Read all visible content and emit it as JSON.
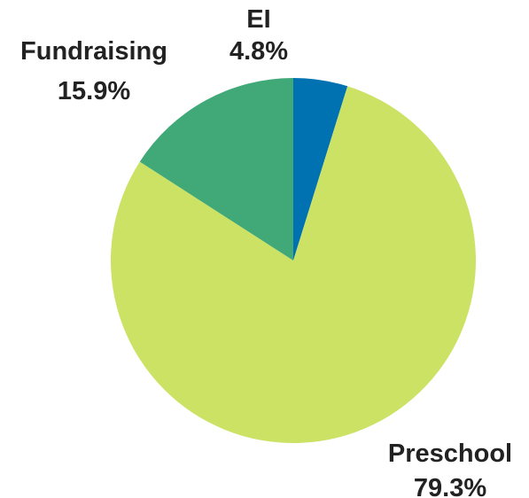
{
  "chart_data": {
    "type": "pie",
    "title": "",
    "slices": [
      {
        "name": "EI",
        "value": 4.8,
        "value_label": "4.8%",
        "color": "#0072b2"
      },
      {
        "name": "Preschool",
        "value": 79.3,
        "value_label": "79.3%",
        "color": "#cbe265"
      },
      {
        "name": "Fundraising",
        "value": 15.9,
        "value_label": "15.9%",
        "color": "#41a978"
      }
    ],
    "start": "top",
    "direction": "clockwise",
    "legend": "none"
  }
}
